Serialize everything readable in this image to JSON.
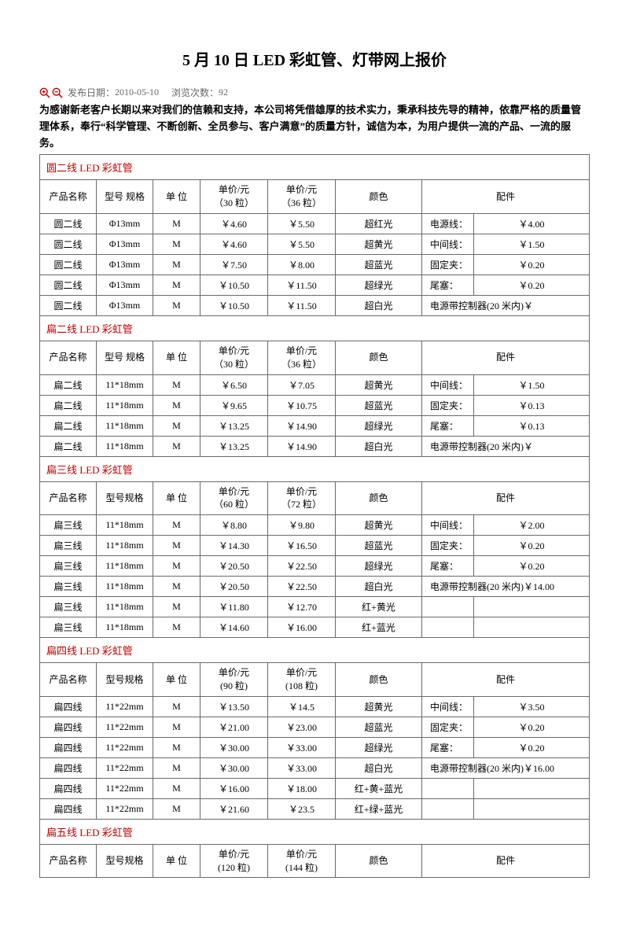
{
  "title": "5 月 10 日 LED 彩虹管、灯带网上报价",
  "meta": {
    "date_label": "发布日期：",
    "date": "2010-05-10",
    "views_label": "浏览次数：",
    "views": "92"
  },
  "intro": "为感谢新老客户长期以来对我们的信赖和支持，本公司将凭借雄厚的技术实力，秉承科技先导的精神，依靠严格的质量管理体系，奉行“科学管理、不断创新、全员参与、客户满意”的质量方针，诚信为本，为用户提供一流的产品、一流的服务。",
  "columns_common": {
    "name": "产品名称",
    "unit": "单 位",
    "color": "颜色",
    "accessory": "配件"
  },
  "sections": [
    {
      "title": "圆二线 LED 彩虹管",
      "spec_header": "型号    规格",
      "price1_header": "单价/元（30 粒）",
      "price2_header": "单价/元（36 粒）",
      "rows": [
        {
          "name": "圆二线",
          "spec": "Φ13mm",
          "unit": "M",
          "p1": "￥4.60",
          "p2": "￥5.50",
          "color": "超红光",
          "acc_label": "电源线：",
          "acc_price": "￥4.00"
        },
        {
          "name": "圆二线",
          "spec": "Φ13mm",
          "unit": "M",
          "p1": "￥4.60",
          "p2": "￥5.50",
          "color": "超黄光",
          "acc_label": "中间线：",
          "acc_price": "￥1.50"
        },
        {
          "name": "圆二线",
          "spec": "Φ13mm",
          "unit": "M",
          "p1": "￥7.50",
          "p2": "￥8.00",
          "color": "超蓝光",
          "acc_label": "固定夹：",
          "acc_price": "￥0.20"
        },
        {
          "name": "圆二线",
          "spec": "Φ13mm",
          "unit": "M",
          "p1": "￥10.50",
          "p2": "￥11.50",
          "color": "超绿光",
          "acc_label": "尾塞：",
          "acc_price": "￥0.20"
        },
        {
          "name": "圆二线",
          "spec": "Φ13mm",
          "unit": "M",
          "p1": "￥10.50",
          "p2": "￥11.50",
          "color": "超白光",
          "acc_full": "电源带控制器(20 米内)￥"
        }
      ]
    },
    {
      "title": "扁二线 LED 彩虹管",
      "spec_header": "型号    规格",
      "price1_header": "单价/元（30 粒）",
      "price2_header": "单价/元（36 粒）",
      "rows": [
        {
          "name": "扁二线",
          "spec": "11*18mm",
          "unit": "M",
          "p1": "￥6.50",
          "p2": "￥7.05",
          "color": "超黄光",
          "acc_label": "中间线：",
          "acc_price": "￥1.50"
        },
        {
          "name": "扁二线",
          "spec": "11*18mm",
          "unit": "M",
          "p1": "￥9.65",
          "p2": "￥10.75",
          "color": "超蓝光",
          "acc_label": "固定夹：",
          "acc_price": "￥0.13"
        },
        {
          "name": "扁二线",
          "spec": "11*18mm",
          "unit": "M",
          "p1": "￥13.25",
          "p2": "￥14.90",
          "color": "超绿光",
          "acc_label": "尾塞：",
          "acc_price": "￥0.13"
        },
        {
          "name": "扁二线",
          "spec": "11*18mm",
          "unit": "M",
          "p1": "￥13.25",
          "p2": "￥14.90",
          "color": "超白光",
          "acc_full": "电源带控制器(20 米内)￥"
        }
      ]
    },
    {
      "title": "扁三线 LED 彩虹管",
      "spec_header": "型号规格",
      "price1_header": "单价/元（60 粒）",
      "price2_header": "单价/元（72 粒）",
      "rows": [
        {
          "name": "扁三线",
          "spec": "11*18mm",
          "unit": "M",
          "p1": "￥8.80",
          "p2": "￥9.80",
          "color": "超黄光",
          "acc_label": "中间线：",
          "acc_price": "￥2.00"
        },
        {
          "name": "扁三线",
          "spec": "11*18mm",
          "unit": "M",
          "p1": "￥14.30",
          "p2": "￥16.50",
          "color": "超蓝光",
          "acc_label": "固定夹：",
          "acc_price": "￥0.20"
        },
        {
          "name": "扁三线",
          "spec": "11*18mm",
          "unit": "M",
          "p1": "￥20.50",
          "p2": "￥22.50",
          "color": "超绿光",
          "acc_label": "尾塞：",
          "acc_price": "￥0.20"
        },
        {
          "name": "扁三线",
          "spec": "11*18mm",
          "unit": "M",
          "p1": "￥20.50",
          "p2": "￥22.50",
          "color": "超白光",
          "acc_full": "电源带控制器(20 米内)￥14.00"
        },
        {
          "name": "扁三线",
          "spec": "11*18mm",
          "unit": "M",
          "p1": "￥11.80",
          "p2": "￥12.70",
          "color": "红+黄光",
          "acc_label": "",
          "acc_price": ""
        },
        {
          "name": "扁三线",
          "spec": "11*18mm",
          "unit": "M",
          "p1": "￥14.60",
          "p2": "￥16.00",
          "color": "红+蓝光",
          "acc_label": "",
          "acc_price": ""
        }
      ]
    },
    {
      "title": "扁四线 LED 彩虹管",
      "spec_header": "型号规格",
      "price1_header": "单价/元(90 粒)",
      "price2_header": "单价/元(108 粒)",
      "rows": [
        {
          "name": "扁四线",
          "spec": "11*22mm",
          "unit": "M",
          "p1": "￥13.50",
          "p2": "￥14.5",
          "color": "超黄光",
          "acc_label": "中间线：",
          "acc_price": "￥3.50"
        },
        {
          "name": "扁四线",
          "spec": "11*22mm",
          "unit": "M",
          "p1": "￥21.00",
          "p2": "￥23.00",
          "color": "超蓝光",
          "acc_label": "固定夹：",
          "acc_price": "￥0.20"
        },
        {
          "name": "扁四线",
          "spec": "11*22mm",
          "unit": "M",
          "p1": "￥30.00",
          "p2": "￥33.00",
          "color": "超绿光",
          "acc_label": "尾塞：",
          "acc_price": "￥0.20"
        },
        {
          "name": "扁四线",
          "spec": "11*22mm",
          "unit": "M",
          "p1": "￥30.00",
          "p2": "￥33.00",
          "color": "超白光",
          "acc_full": "电源带控制器(20 米内)￥16.00"
        },
        {
          "name": "扁四线",
          "spec": "11*22mm",
          "unit": "M",
          "p1": "￥16.00",
          "p2": "￥18.00",
          "color": "红+黄+蓝光",
          "acc_label": "",
          "acc_price": ""
        },
        {
          "name": "扁四线",
          "spec": "11*22mm",
          "unit": "M",
          "p1": "￥21.60",
          "p2": "￥23.5",
          "color": "红+绿+蓝光",
          "acc_label": "",
          "acc_price": ""
        }
      ]
    },
    {
      "title": "扁五线 LED 彩虹管",
      "spec_header": "型号规格",
      "price1_header": "单价/元(120 粒)",
      "price2_header": "单价/元(144 粒)",
      "rows": []
    }
  ],
  "colors": {
    "section_title": "#c00000",
    "border": "#6a6a6a",
    "meta_text": "#666666"
  }
}
